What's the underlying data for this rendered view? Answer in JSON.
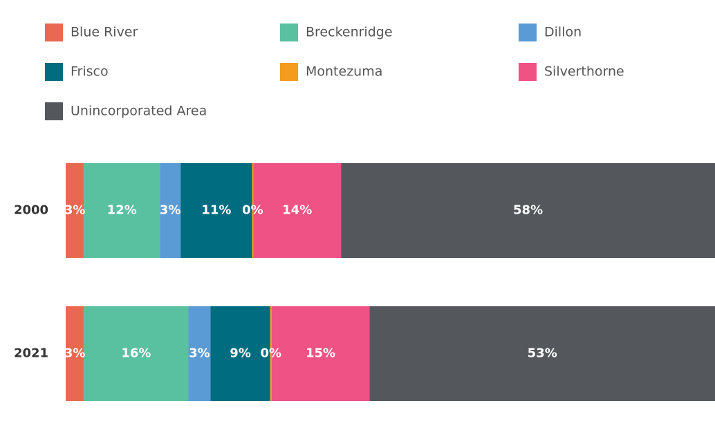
{
  "chart_data": {
    "type": "bar",
    "orientation": "horizontal",
    "stacked": true,
    "categories": [
      "2000",
      "2021"
    ],
    "xlim": [
      0,
      100
    ],
    "series": [
      {
        "name": "Blue River",
        "color": "#e8694f",
        "values": [
          2.8,
          2.8
        ],
        "value_labels": [
          "3%",
          "3%"
        ]
      },
      {
        "name": "Breckenridge",
        "color": "#59c0a0",
        "values": [
          11.7,
          16.1
        ],
        "value_labels": [
          "12%",
          "16%"
        ]
      },
      {
        "name": "Dillon",
        "color": "#5b9bd5",
        "values": [
          3.2,
          3.4
        ],
        "value_labels": [
          "3%",
          "3%"
        ]
      },
      {
        "name": "Frisco",
        "color": "#006c80",
        "values": [
          11.0,
          9.2
        ],
        "value_labels": [
          "11%",
          "9%"
        ]
      },
      {
        "name": "Montezuma",
        "color": "#f39c1e",
        "values": [
          0.2,
          0.2
        ],
        "value_labels": [
          "0%",
          "0%"
        ]
      },
      {
        "name": "Silverthorne",
        "color": "#ef5285",
        "values": [
          13.5,
          15.1
        ],
        "value_labels": [
          "14%",
          "15%"
        ]
      },
      {
        "name": "Unincorporated Area",
        "color": "#54585c",
        "values": [
          57.6,
          53.2
        ],
        "value_labels": [
          "58%",
          "53%"
        ]
      }
    ]
  }
}
